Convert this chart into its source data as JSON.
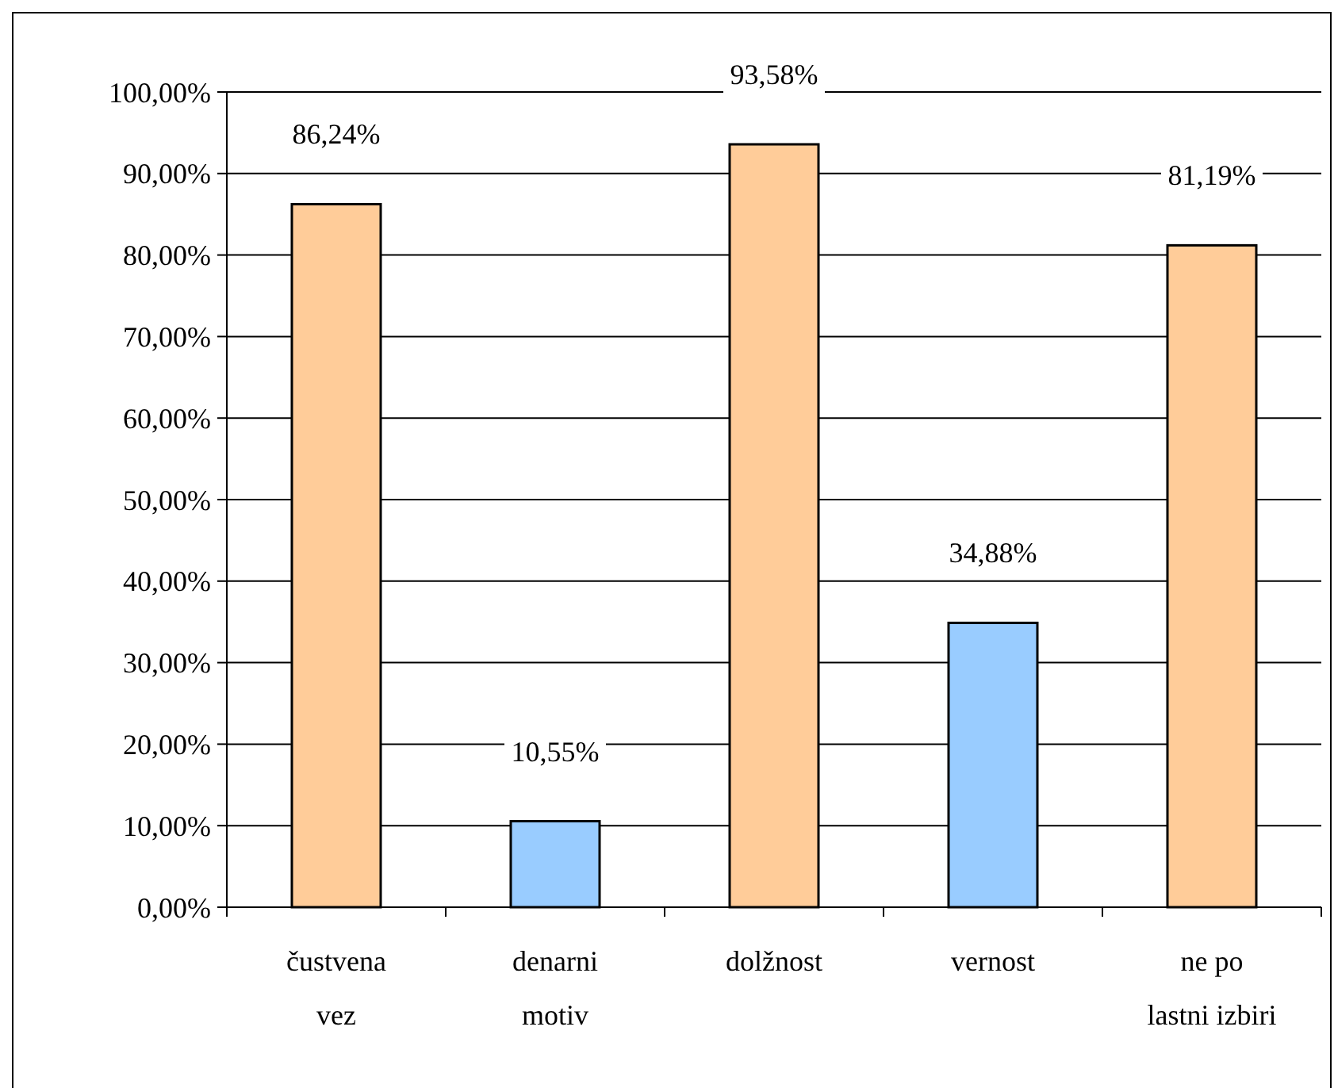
{
  "chart_data": {
    "type": "bar",
    "categories": [
      "čustvena vez",
      "denarni motiv",
      "dolžnost",
      "vernost",
      "ne po lastni izbiri"
    ],
    "values": [
      86.24,
      10.55,
      93.58,
      34.88,
      81.19
    ],
    "colors": [
      "#ffcc99",
      "#99ccff",
      "#ffcc99",
      "#99ccff",
      "#ffcc99"
    ],
    "value_labels": [
      "86,24%",
      "10,55%",
      "93,58%",
      "34,88%",
      "81,19%"
    ],
    "ylim": [
      0,
      100
    ],
    "yticks": [
      {
        "value": 0,
        "label": "0,00%"
      },
      {
        "value": 10,
        "label": "10,00%"
      },
      {
        "value": 20,
        "label": "20,00%"
      },
      {
        "value": 30,
        "label": "30,00%"
      },
      {
        "value": 40,
        "label": "40,00%"
      },
      {
        "value": 50,
        "label": "50,00%"
      },
      {
        "value": 60,
        "label": "60,00%"
      },
      {
        "value": 70,
        "label": "70,00%"
      },
      {
        "value": 80,
        "label": "80,00%"
      },
      {
        "value": 90,
        "label": "90,00%"
      },
      {
        "value": 100,
        "label": "100,00%"
      }
    ],
    "grid": "y"
  }
}
